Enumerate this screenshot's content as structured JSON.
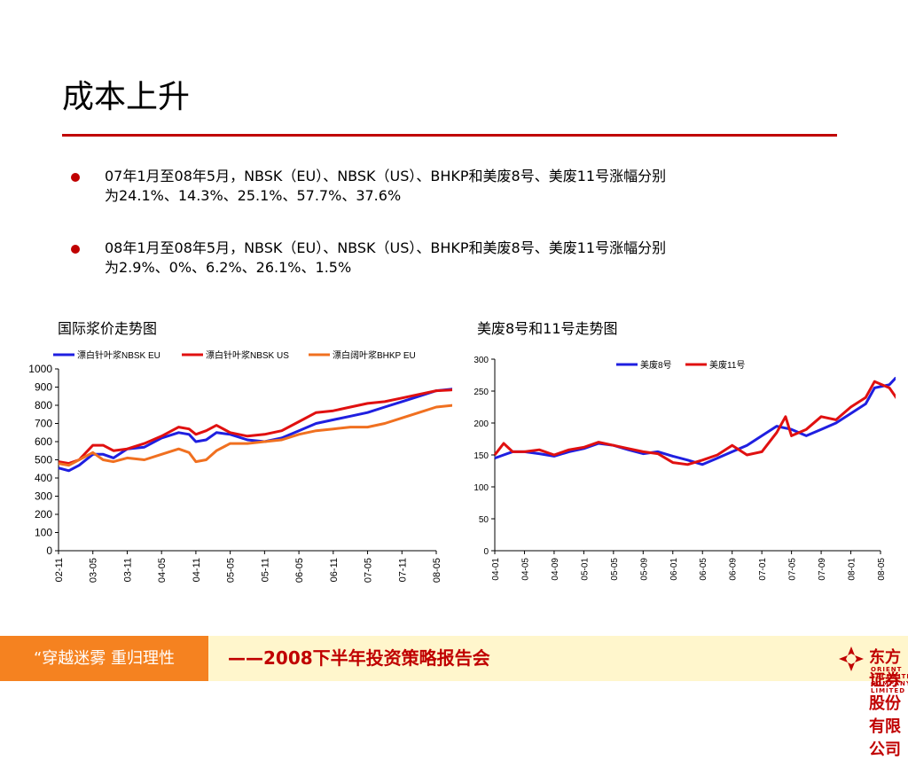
{
  "page": {
    "title": "成本上升",
    "bullets": [
      {
        "line1": "07年1月至08年5月，NBSK（EU）、NBSK（US）、BHKP和美废8号、美废11号涨幅分别",
        "line2": "为24.1%、14.3%、25.1%、57.7%、37.6%"
      },
      {
        "line1": "08年1月至08年5月，NBSK（EU）、NBSK（US）、BHKP和美废8号、美废11号涨幅分别",
        "line2": "为2.9%、0%、6.2%、26.1%、1.5%"
      }
    ]
  },
  "colors": {
    "accent": "#c00000",
    "bullet": "#c00000",
    "footer_left_bg": "#f58220",
    "footer_right_bg": "#fff6cc",
    "footer_text_red": "#c00000",
    "series_blue": "#1f1fe0",
    "series_red": "#e01010",
    "series_orange": "#f07020"
  },
  "chart_titles": {
    "left": "国际浆价走势图",
    "right": "美废8号和11号走势图"
  },
  "chart_data": [
    {
      "type": "line",
      "title": "国际浆价走势图",
      "ylim": [
        0,
        1000
      ],
      "yticks": [
        0,
        100,
        200,
        300,
        400,
        500,
        600,
        700,
        800,
        900,
        1000
      ],
      "xticks": [
        "02-11",
        "03-05",
        "03-11",
        "04-05",
        "04-11",
        "05-05",
        "05-11",
        "06-05",
        "06-11",
        "07-05",
        "07-11",
        "08-05"
      ],
      "legend_position": "top",
      "grid": false,
      "series": [
        {
          "name": "漂白针叶浆NBSK EU",
          "color": "#1f1fe0",
          "points": [
            [
              0,
              455
            ],
            [
              0.3,
              440
            ],
            [
              0.6,
              470
            ],
            [
              1,
              530
            ],
            [
              1.3,
              530
            ],
            [
              1.6,
              510
            ],
            [
              2,
              560
            ],
            [
              2.5,
              570
            ],
            [
              3,
              620
            ],
            [
              3.5,
              650
            ],
            [
              3.8,
              640
            ],
            [
              4,
              600
            ],
            [
              4.3,
              610
            ],
            [
              4.6,
              650
            ],
            [
              5,
              640
            ],
            [
              5.5,
              610
            ],
            [
              6,
              600
            ],
            [
              6.5,
              620
            ],
            [
              7,
              660
            ],
            [
              7.5,
              700
            ],
            [
              8,
              720
            ],
            [
              8.5,
              740
            ],
            [
              9,
              760
            ],
            [
              9.5,
              790
            ],
            [
              10,
              820
            ],
            [
              10.5,
              850
            ],
            [
              11,
              880
            ],
            [
              11.5,
              890
            ],
            [
              11.95,
              905
            ]
          ]
        },
        {
          "name": "漂白针叶浆NBSK US",
          "color": "#e01010",
          "points": [
            [
              0,
              490
            ],
            [
              0.3,
              480
            ],
            [
              0.6,
              500
            ],
            [
              1,
              580
            ],
            [
              1.3,
              580
            ],
            [
              1.6,
              550
            ],
            [
              2,
              560
            ],
            [
              2.5,
              590
            ],
            [
              3,
              630
            ],
            [
              3.5,
              680
            ],
            [
              3.8,
              670
            ],
            [
              4,
              640
            ],
            [
              4.3,
              660
            ],
            [
              4.6,
              690
            ],
            [
              5,
              650
            ],
            [
              5.5,
              630
            ],
            [
              6,
              640
            ],
            [
              6.5,
              660
            ],
            [
              7,
              710
            ],
            [
              7.5,
              760
            ],
            [
              8,
              770
            ],
            [
              8.5,
              790
            ],
            [
              9,
              810
            ],
            [
              9.5,
              820
            ],
            [
              10,
              840
            ],
            [
              10.5,
              860
            ],
            [
              11,
              880
            ],
            [
              11.5,
              885
            ],
            [
              11.95,
              880
            ]
          ]
        },
        {
          "name": "漂白阔叶浆BHKP EU",
          "color": "#f07020",
          "points": [
            [
              0,
              480
            ],
            [
              0.3,
              470
            ],
            [
              0.6,
              500
            ],
            [
              1,
              540
            ],
            [
              1.3,
              500
            ],
            [
              1.6,
              490
            ],
            [
              2,
              510
            ],
            [
              2.5,
              500
            ],
            [
              3,
              530
            ],
            [
              3.5,
              560
            ],
            [
              3.8,
              540
            ],
            [
              4,
              490
            ],
            [
              4.3,
              500
            ],
            [
              4.6,
              550
            ],
            [
              5,
              590
            ],
            [
              5.5,
              590
            ],
            [
              6,
              600
            ],
            [
              6.5,
              610
            ],
            [
              7,
              640
            ],
            [
              7.5,
              660
            ],
            [
              8,
              670
            ],
            [
              8.5,
              680
            ],
            [
              9,
              680
            ],
            [
              9.5,
              700
            ],
            [
              10,
              730
            ],
            [
              10.5,
              760
            ],
            [
              11,
              790
            ],
            [
              11.5,
              800
            ],
            [
              11.95,
              840
            ]
          ]
        }
      ]
    },
    {
      "type": "line",
      "title": "美废8号和11号走势图",
      "ylim": [
        0,
        300
      ],
      "yticks": [
        0,
        50,
        100,
        150,
        200,
        250,
        300
      ],
      "xticks": [
        "04-01",
        "04-05",
        "04-09",
        "05-01",
        "05-05",
        "05-09",
        "06-01",
        "06-05",
        "06-09",
        "07-01",
        "07-05",
        "07-09",
        "08-01",
        "08-05"
      ],
      "legend_position": "top",
      "grid": false,
      "series": [
        {
          "name": "美废8号",
          "color": "#1f1fe0",
          "points": [
            [
              0,
              145
            ],
            [
              0.3,
              150
            ],
            [
              0.6,
              155
            ],
            [
              1,
              155
            ],
            [
              1.5,
              152
            ],
            [
              2,
              148
            ],
            [
              2.5,
              155
            ],
            [
              3,
              160
            ],
            [
              3.5,
              168
            ],
            [
              4,
              165
            ],
            [
              4.5,
              158
            ],
            [
              5,
              152
            ],
            [
              5.5,
              155
            ],
            [
              6,
              148
            ],
            [
              6.5,
              142
            ],
            [
              7,
              135
            ],
            [
              7.5,
              145
            ],
            [
              8,
              155
            ],
            [
              8.5,
              165
            ],
            [
              9,
              180
            ],
            [
              9.5,
              195
            ],
            [
              10,
              190
            ],
            [
              10.5,
              180
            ],
            [
              11,
              190
            ],
            [
              11.5,
              200
            ],
            [
              12,
              215
            ],
            [
              12.5,
              230
            ],
            [
              12.8,
              255
            ],
            [
              13.3,
              260
            ],
            [
              13.5,
              270
            ],
            [
              13.95,
              277
            ]
          ]
        },
        {
          "name": "美废11号",
          "color": "#e01010",
          "points": [
            [
              0,
              150
            ],
            [
              0.3,
              168
            ],
            [
              0.6,
              155
            ],
            [
              1,
              155
            ],
            [
              1.5,
              158
            ],
            [
              2,
              150
            ],
            [
              2.5,
              158
            ],
            [
              3,
              162
            ],
            [
              3.5,
              170
            ],
            [
              4,
              165
            ],
            [
              4.5,
              160
            ],
            [
              5,
              155
            ],
            [
              5.5,
              152
            ],
            [
              6,
              138
            ],
            [
              6.5,
              135
            ],
            [
              7,
              142
            ],
            [
              7.5,
              150
            ],
            [
              8,
              165
            ],
            [
              8.5,
              150
            ],
            [
              9,
              155
            ],
            [
              9.5,
              185
            ],
            [
              9.8,
              210
            ],
            [
              10,
              180
            ],
            [
              10.5,
              190
            ],
            [
              11,
              210
            ],
            [
              11.5,
              205
            ],
            [
              12,
              225
            ],
            [
              12.5,
              240
            ],
            [
              12.8,
              265
            ],
            [
              13.3,
              255
            ],
            [
              13.6,
              235
            ],
            [
              13.95,
              230
            ]
          ]
        }
      ]
    }
  ],
  "footer": {
    "slogan": "“穿越迷雾   重归理性",
    "report": "——2008下半年投资策略报告会",
    "logo_cn": "东方证券股份有限公司",
    "logo_en": "ORIENT SECURITIES COMPANY LIMITED"
  }
}
